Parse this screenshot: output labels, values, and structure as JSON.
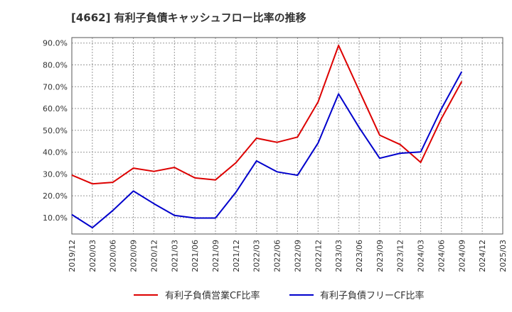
{
  "chart_data": {
    "type": "line",
    "title": "[4662]  有利子負債キャッシュフロー比率の推移",
    "xlabel": "",
    "ylabel": "",
    "x": [
      "2019/12",
      "2020/03",
      "2020/06",
      "2020/09",
      "2020/12",
      "2021/03",
      "2021/06",
      "2021/09",
      "2021/12",
      "2022/03",
      "2022/06",
      "2022/09",
      "2022/12",
      "2023/03",
      "2023/06",
      "2023/09",
      "2023/12",
      "2024/03",
      "2024/06",
      "2024/09",
      "2024/12",
      "2025/03"
    ],
    "y_ticks": [
      "10.0%",
      "20.0%",
      "30.0%",
      "40.0%",
      "50.0%",
      "60.0%",
      "70.0%",
      "80.0%",
      "90.0%"
    ],
    "ylim": [
      2.5,
      92.5
    ],
    "grid": true,
    "legend_position": "bottom",
    "series": [
      {
        "name": "有利子負債営業CF比率",
        "color": "#dd0000",
        "values": [
          29.5,
          25.5,
          26.2,
          32.7,
          31.2,
          33.0,
          28.2,
          27.3,
          35.2,
          46.4,
          44.5,
          46.9,
          63.0,
          88.9,
          68.3,
          47.8,
          43.5,
          35.3,
          55.2,
          72.4,
          null,
          null
        ]
      },
      {
        "name": "有利子負債フリーCF比率",
        "color": "#0000cc",
        "values": [
          11.4,
          5.4,
          13.3,
          22.2,
          16.4,
          11.0,
          9.8,
          9.8,
          21.7,
          36.0,
          31.0,
          29.4,
          44.2,
          66.7,
          51.3,
          37.2,
          39.5,
          40.1,
          59.7,
          76.9,
          null,
          null
        ]
      }
    ]
  }
}
